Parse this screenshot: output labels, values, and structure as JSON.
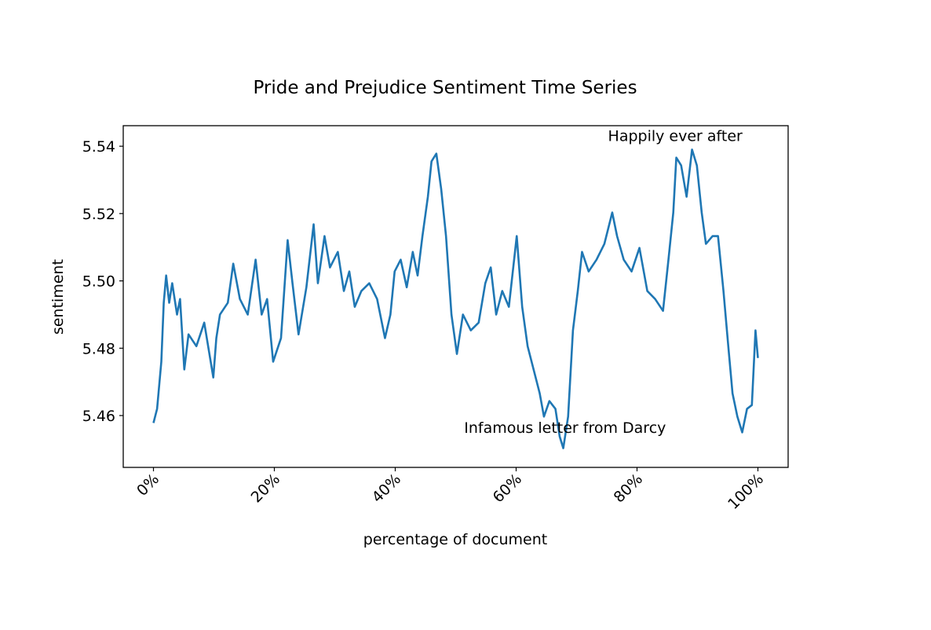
{
  "chart_data": {
    "type": "line",
    "title": "Pride and Prejudice Sentiment Time Series",
    "xlabel": "percentage of document",
    "ylabel": "sentiment",
    "x": [
      0.0,
      0.6,
      1.3,
      1.7,
      2.1,
      2.6,
      3.1,
      3.9,
      4.4,
      5.1,
      5.8,
      7.1,
      8.4,
      9.9,
      10.4,
      11.0,
      12.3,
      13.2,
      14.3,
      15.6,
      16.9,
      17.9,
      18.8,
      19.8,
      21.1,
      22.2,
      23.0,
      24.0,
      25.3,
      26.5,
      27.2,
      28.3,
      29.2,
      30.5,
      31.5,
      32.4,
      33.3,
      34.4,
      35.7,
      37.0,
      38.3,
      39.2,
      39.9,
      40.9,
      41.9,
      42.9,
      43.7,
      44.5,
      45.4,
      46.0,
      46.8,
      47.6,
      48.4,
      49.3,
      50.2,
      51.2,
      52.5,
      53.8,
      54.9,
      55.8,
      56.7,
      57.7,
      58.8,
      60.1,
      61.0,
      61.9,
      62.9,
      63.9,
      64.6,
      65.5,
      66.5,
      67.2,
      67.8,
      68.6,
      69.4,
      70.2,
      70.9,
      72.0,
      73.3,
      74.6,
      75.9,
      76.7,
      77.8,
      79.1,
      80.4,
      81.7,
      83.0,
      84.3,
      85.2,
      86.0,
      86.5,
      87.3,
      88.2,
      89.1,
      89.9,
      90.7,
      91.4,
      92.5,
      93.4,
      94.3,
      95.1,
      95.8,
      96.6,
      97.4,
      98.2,
      99.0,
      99.6,
      100.0
    ],
    "series": [
      {
        "name": "sentiment",
        "color": "#1f77b4",
        "values": [
          5.4578,
          5.462,
          5.476,
          5.4935,
          5.5016,
          5.4935,
          5.4993,
          5.49,
          5.4946,
          5.4737,
          5.4841,
          5.4806,
          5.4876,
          5.4713,
          5.483,
          5.49,
          5.4935,
          5.5051,
          5.4946,
          5.49,
          5.5063,
          5.49,
          5.4946,
          5.476,
          5.483,
          5.5121,
          5.4993,
          5.4841,
          5.4981,
          5.5168,
          5.4993,
          5.5133,
          5.504,
          5.5086,
          5.497,
          5.5028,
          5.4923,
          5.497,
          5.4993,
          5.4946,
          5.483,
          5.49,
          5.5028,
          5.5063,
          5.4981,
          5.5086,
          5.5016,
          5.5133,
          5.525,
          5.5355,
          5.5378,
          5.5273,
          5.5133,
          5.49,
          5.4783,
          5.49,
          5.4853,
          5.4876,
          5.4993,
          5.504,
          5.49,
          5.497,
          5.4923,
          5.5133,
          5.4923,
          5.4806,
          5.4736,
          5.4666,
          5.4597,
          5.4643,
          5.462,
          5.4538,
          5.4503,
          5.4597,
          5.4853,
          5.497,
          5.5086,
          5.5028,
          5.5063,
          5.511,
          5.5203,
          5.5133,
          5.5063,
          5.5028,
          5.5098,
          5.497,
          5.4946,
          5.4911,
          5.5063,
          5.5203,
          5.5366,
          5.5343,
          5.525,
          5.539,
          5.5343,
          5.5203,
          5.511,
          5.5133,
          5.5133,
          5.497,
          5.4806,
          5.4666,
          5.4597,
          5.455,
          5.462,
          5.4631,
          5.4853,
          5.4771
        ]
      }
    ],
    "xlim": [
      -5,
      105
    ],
    "ylim": [
      5.4446,
      5.5461
    ],
    "xticks": [
      {
        "value": 0,
        "label": "0%"
      },
      {
        "value": 20,
        "label": "20%"
      },
      {
        "value": 40,
        "label": "40%"
      },
      {
        "value": 60,
        "label": "60%"
      },
      {
        "value": 80,
        "label": "80%"
      },
      {
        "value": 100,
        "label": "100%"
      }
    ],
    "yticks": [
      5.46,
      5.48,
      {
        "value": 5.5,
        "label": "5.50"
      },
      5.52,
      5.54
    ],
    "annotations": [
      {
        "text": "Happily ever after",
        "x": 75.2,
        "y": 5.5415
      },
      {
        "text": "Infamous letter from Darcy",
        "x": 51.4,
        "y": 5.4549
      }
    ]
  }
}
